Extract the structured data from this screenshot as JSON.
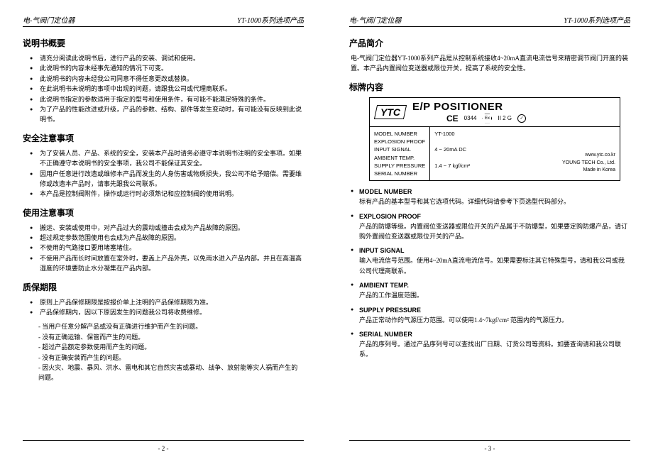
{
  "header": {
    "left": "电-气阀门定位器",
    "right": "YT-1000系列选项产品"
  },
  "page_left": {
    "s1_title": "说明书概要",
    "s1_items": [
      "请充分阅读此说明书后，进行产品的安装、调试和使用。",
      "此说明书的内容未经事先通知的情况下可变。",
      "此说明书的内容未经我公司同意不得任意更改或替换。",
      "在此说明书未说明的事项中出现的问题，请跟我公司或代理商联系。",
      "此说明书指定的参数适用于指定的型号和使用条件，有可能不能满足特殊的条件。",
      "为了产品的性能改进或升级，产品的参数、结构、部件等发生变动时，有可能没有反映到此说明书。"
    ],
    "s2_title": "安全注意事项",
    "s2_items": [
      "为了安装人员、产品、系统的安全，安装本产品时请务必遵守本说明书注明的安全事项。如果不正确遵守本说明书的安全事项，我公司不能保证其安全。",
      "因用户任意进行改造或维修本产品而发生的人身伤害或物质损失，我公司不给予赔偿。需要维修或改造本产品时，请事先跟我公司联系。",
      "本产品是控制阀附件，操作或运行时必须熟记和应控制阀的使用说明。"
    ],
    "s3_title": "使用注意事项",
    "s3_items": [
      "搬运、安装或使用中，对产品过大的震动或撞击会成为产品故障的原因。",
      "超过规定参数范围使用也会成为产品故障的原因。",
      "不使用的气路接口要用堵塞堵住。",
      "不使用产品而长时间放置在室外时，要盖上产品外壳，以免雨水进入产品内部。并且在高温高湿度的环境要防止水分凝集在产品内部。"
    ],
    "s4_title": "质保期限",
    "s4_items": [
      "原则上产品保修期限是按报价单上注明的产品保修期限为准。",
      "产品保修期内，因以下原因发生的问题我公司将收费维修。"
    ],
    "s4_subs": [
      "- 当用户任意分解产品或没有正确进行维护而产生的问题。",
      "- 没有正确运输、保管而产生的问题。",
      "- 超过产品额定参数使用而产生的问题。",
      "- 没有正确安装而产生的问题。",
      "- 因火灾、地震、暴风、洪水、雷电和其它自然灾害或暴动、战争、放射能等灾人祸而产生的问题。"
    ],
    "footer": "- 2 -"
  },
  "page_right": {
    "s1_title": "产品简介",
    "s1_text": "电-气阀门定位器YT-1000系列产品是从控制系统接收4~20mA直流电流信号来精密调节阀门开度的装置。本产品内置阀位变送器或限位开关，提高了系统的安全性。",
    "s2_title": "标牌内容",
    "nameplate": {
      "logo": "YTC",
      "title": "E/P POSITIONER",
      "ce": "CE",
      "ce_num": "0344",
      "ex": "Ex",
      "ex_num": "II 2 G",
      "labels": [
        "MODEL NUMBER",
        "EXPLOSION PROOF",
        "INPUT SIGNAL",
        "AMBIENT TEMP.",
        "SUPPLY PRESSURE",
        "SERIAL NUMBER"
      ],
      "val_model": "YT-1000",
      "val_input": "4 ~ 20mA DC",
      "val_supply": "1.4 ~ 7 kgf/cm²",
      "web": "www.ytc.co.kr",
      "company": "YOUNG TECH Co., Ltd.",
      "made": "Made in Korea"
    },
    "terms": [
      {
        "name": "MODEL NUMBER",
        "desc": "标有产品的基本型号和其它选项代码。详细代码请参考下页选型代码部分。"
      },
      {
        "name": "EXPLOSION PROOF",
        "desc": "产品的防爆等级。内置阀位变送器或限位开关的产品属于不防爆型，如果要定购防爆产品，请订购外置阀位变送器或限位开关的产品。"
      },
      {
        "name": "INPUT SIGNAL",
        "desc": "输入电流信号范围。使用4~20mA直流电流信号。如果需要标注其它特殊型号，请和我公司或我公司代理商联系。"
      },
      {
        "name": "AMBIENT TEMP.",
        "desc": "产品的工作温度范围。"
      },
      {
        "name": "SUPPLY PRESSURE",
        "desc": "产品正常动作的气源压力范围。可以使用1.4~7kgf/cm² 范围内的气源压力。"
      },
      {
        "name": "SERIAL NUMBER",
        "desc": "产品的序列号。通过产品序列号可以查找出厂日期、订货公司等资料。如要查询请和我公司联系。"
      }
    ],
    "footer": "- 3 -"
  }
}
